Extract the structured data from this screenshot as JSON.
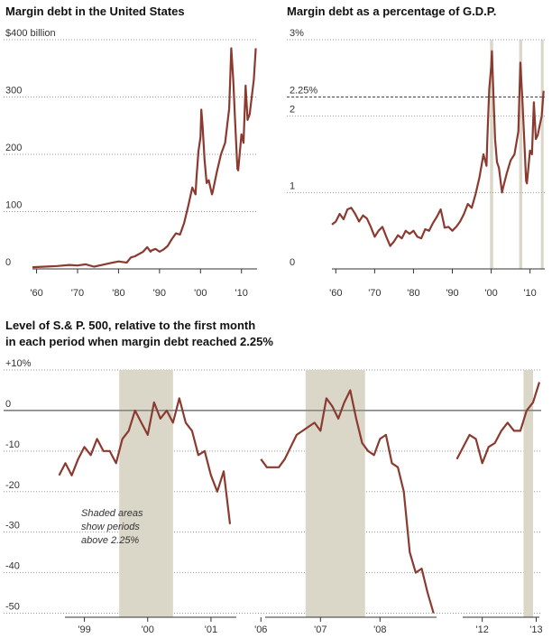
{
  "titles": {
    "chart1": "Margin debt in the United States",
    "chart2": "Margin debt as a percentage of G.D.P.",
    "chart3_line1": "Level of S.& P. 500, relative to the first month",
    "chart3_line2": "in each period when margin debt reached 2.25%"
  },
  "colors": {
    "series": "#8b3a2f",
    "shade": "#dad7c8",
    "grid": "#999999",
    "zero": "#555555"
  },
  "chart_data": [
    {
      "type": "line",
      "title": "Margin debt in the United States",
      "x_tick_labels": [
        "'60",
        "'70",
        "'80",
        "'90",
        "'00",
        "'10"
      ],
      "x_ticks": [
        1960,
        1970,
        1980,
        1990,
        2000,
        2010
      ],
      "xlim": [
        1959,
        2013.8
      ],
      "y_tick_labels": [
        "$400 billion",
        "300",
        "200",
        "100",
        "0"
      ],
      "y_ticks": [
        400,
        300,
        200,
        100,
        0
      ],
      "ylim": [
        0,
        400
      ],
      "grid": "dotted horizontal",
      "series": [
        {
          "x": [
            1959,
            1962,
            1965,
            1968,
            1970,
            1972,
            1974,
            1976,
            1978,
            1980,
            1982,
            1983,
            1984,
            1986,
            1987,
            1987.8,
            1988,
            1989,
            1990,
            1991,
            1992,
            1993,
            1994,
            1995,
            1996,
            1997,
            1998,
            1998.8,
            1999,
            1999.5,
            2000,
            2000.2,
            2000.5,
            2001,
            2001.5,
            2002,
            2002.8,
            2003,
            2004,
            2005,
            2006,
            2007,
            2007.5,
            2008,
            2008.5,
            2009,
            2009.2,
            2010,
            2010.5,
            2011,
            2011.5,
            2012,
            2012.5,
            2013,
            2013.5
          ],
          "y": [
            3,
            4,
            5,
            7,
            6,
            8,
            4,
            7,
            10,
            13,
            11,
            20,
            22,
            30,
            38,
            30,
            32,
            35,
            30,
            34,
            40,
            52,
            62,
            60,
            80,
            110,
            142,
            130,
            158,
            205,
            230,
            278,
            250,
            190,
            150,
            155,
            130,
            135,
            170,
            200,
            220,
            280,
            385,
            330,
            250,
            175,
            172,
            235,
            220,
            320,
            260,
            270,
            300,
            330,
            385
          ]
        }
      ]
    },
    {
      "type": "line",
      "title": "Margin debt as a percentage of G.D.P.",
      "x_tick_labels": [
        "'60",
        "'70",
        "'80",
        "'90",
        "'00",
        "'10"
      ],
      "x_ticks": [
        1960,
        1970,
        1980,
        1990,
        2000,
        2010
      ],
      "xlim": [
        1959,
        2013.8
      ],
      "y_tick_labels": [
        "3%",
        "2",
        "1",
        "0"
      ],
      "y_ticks": [
        3,
        2,
        1,
        0
      ],
      "ylim": [
        0,
        3
      ],
      "reference_line": {
        "value": 2.25,
        "label": "2.25%"
      },
      "shaded_x_ranges": [
        [
          1999.7,
          2000.5
        ],
        [
          2007.2,
          2008.0
        ],
        [
          2012.8,
          2013.5
        ]
      ],
      "series": [
        {
          "x": [
            1959,
            1960,
            1961,
            1962,
            1963,
            1964,
            1965,
            1966,
            1967,
            1968,
            1969,
            1970,
            1971,
            1972,
            1973,
            1974,
            1975,
            1976,
            1977,
            1978,
            1979,
            1980,
            1981,
            1982,
            1983,
            1984,
            1985,
            1986,
            1987,
            1987.8,
            1988,
            1989,
            1990,
            1991,
            1992,
            1993,
            1994,
            1995,
            1996,
            1997,
            1998,
            1998.8,
            1999,
            1999.5,
            2000,
            2000.2,
            2000.5,
            2001,
            2001.5,
            2002,
            2002.8,
            2003,
            2004,
            2005,
            2006,
            2007,
            2007.5,
            2008,
            2008.5,
            2009,
            2009.2,
            2010,
            2010.5,
            2011,
            2011.5,
            2012,
            2012.5,
            2013,
            2013.5
          ],
          "y": [
            0.58,
            0.62,
            0.72,
            0.65,
            0.78,
            0.8,
            0.72,
            0.62,
            0.7,
            0.66,
            0.55,
            0.42,
            0.5,
            0.55,
            0.42,
            0.3,
            0.36,
            0.44,
            0.4,
            0.5,
            0.46,
            0.5,
            0.42,
            0.4,
            0.52,
            0.5,
            0.6,
            0.68,
            0.78,
            0.6,
            0.54,
            0.55,
            0.5,
            0.55,
            0.62,
            0.72,
            0.85,
            0.8,
            0.98,
            1.2,
            1.5,
            1.35,
            1.7,
            2.35,
            2.65,
            2.85,
            2.4,
            1.7,
            1.4,
            1.32,
            1.0,
            1.05,
            1.25,
            1.42,
            1.5,
            1.8,
            2.7,
            2.25,
            1.7,
            1.15,
            1.12,
            1.55,
            1.5,
            2.18,
            1.7,
            1.75,
            1.88,
            2.0,
            2.33
          ]
        }
      ]
    },
    {
      "type": "line",
      "title": "Level of S.& P. 500, relative to the first month in each period when margin debt reached 2.25%",
      "y_tick_labels": [
        "+10%",
        "0",
        "-10",
        "-20",
        "-30",
        "-40",
        "-50"
      ],
      "y_ticks": [
        10,
        0,
        -10,
        -20,
        -30,
        -40,
        -50
      ],
      "ylim": [
        -51,
        10
      ],
      "annotation": "Shaded areas show periods above 2.25%",
      "panels": [
        {
          "x_tick_labels": [
            "'99",
            "'00",
            "'01"
          ],
          "x_ticks": [
            1999.0,
            2000.0,
            2001.0
          ],
          "xlim": [
            1998.55,
            2001.4
          ],
          "shaded_x_range": [
            1999.55,
            2000.4
          ],
          "series": [
            {
              "x": [
                1998.6,
                1998.7,
                1998.8,
                1998.9,
                1999.0,
                1999.1,
                1999.2,
                1999.3,
                1999.4,
                1999.5,
                1999.6,
                1999.7,
                1999.8,
                1999.9,
                2000.0,
                2000.1,
                2000.2,
                2000.3,
                2000.4,
                2000.5,
                2000.6,
                2000.7,
                2000.8,
                2000.9,
                2001.0,
                2001.1,
                2001.2,
                2001.3
              ],
              "y": [
                -16,
                -13,
                -16,
                -12,
                -9,
                -11,
                -7,
                -10,
                -10,
                -13,
                -7,
                -5,
                0,
                -3,
                -6,
                2,
                -2,
                0,
                -3,
                3,
                -3,
                -5,
                -11,
                -10,
                -16,
                -20,
                -15,
                -28
              ]
            }
          ]
        },
        {
          "x_tick_labels": [
            "'06",
            "'07",
            "'08"
          ],
          "x_ticks": [
            2006.0,
            2007.0,
            2008.0
          ],
          "xlim": [
            2005.92,
            2008.95
          ],
          "shaded_x_range": [
            2006.75,
            2007.75
          ],
          "series": [
            {
              "x": [
                2006.0,
                2006.1,
                2006.2,
                2006.3,
                2006.4,
                2006.5,
                2006.6,
                2006.7,
                2006.8,
                2006.9,
                2007.0,
                2007.1,
                2007.2,
                2007.3,
                2007.4,
                2007.5,
                2007.6,
                2007.7,
                2007.8,
                2007.9,
                2008.0,
                2008.1,
                2008.2,
                2008.3,
                2008.4,
                2008.5,
                2008.6,
                2008.7,
                2008.8,
                2008.9
              ],
              "y": [
                -12,
                -14,
                -14,
                -14,
                -12,
                -9,
                -6,
                -5,
                -4,
                -3,
                -5,
                3,
                1,
                -2,
                2,
                5,
                -2,
                -8,
                -10,
                -11,
                -7,
                -6,
                -13,
                -14,
                -20,
                -35,
                -40,
                -39,
                -45,
                -50
              ]
            }
          ]
        },
        {
          "x_tick_labels": [
            "'12",
            "'13"
          ],
          "x_ticks": [
            2012.3,
            2013.15
          ],
          "xlim": [
            2011.85,
            2013.2
          ],
          "shaded_x_range": [
            2012.95,
            2013.1
          ],
          "series": [
            {
              "x": [
                2011.9,
                2012.0,
                2012.1,
                2012.2,
                2012.3,
                2012.4,
                2012.5,
                2012.6,
                2012.7,
                2012.8,
                2012.9,
                2013.0,
                2013.1,
                2013.2
              ],
              "y": [
                -12,
                -9,
                -6,
                -7,
                -13,
                -9,
                -8,
                -5,
                -3,
                -5,
                -5,
                0,
                2,
                7
              ]
            }
          ]
        }
      ]
    }
  ]
}
